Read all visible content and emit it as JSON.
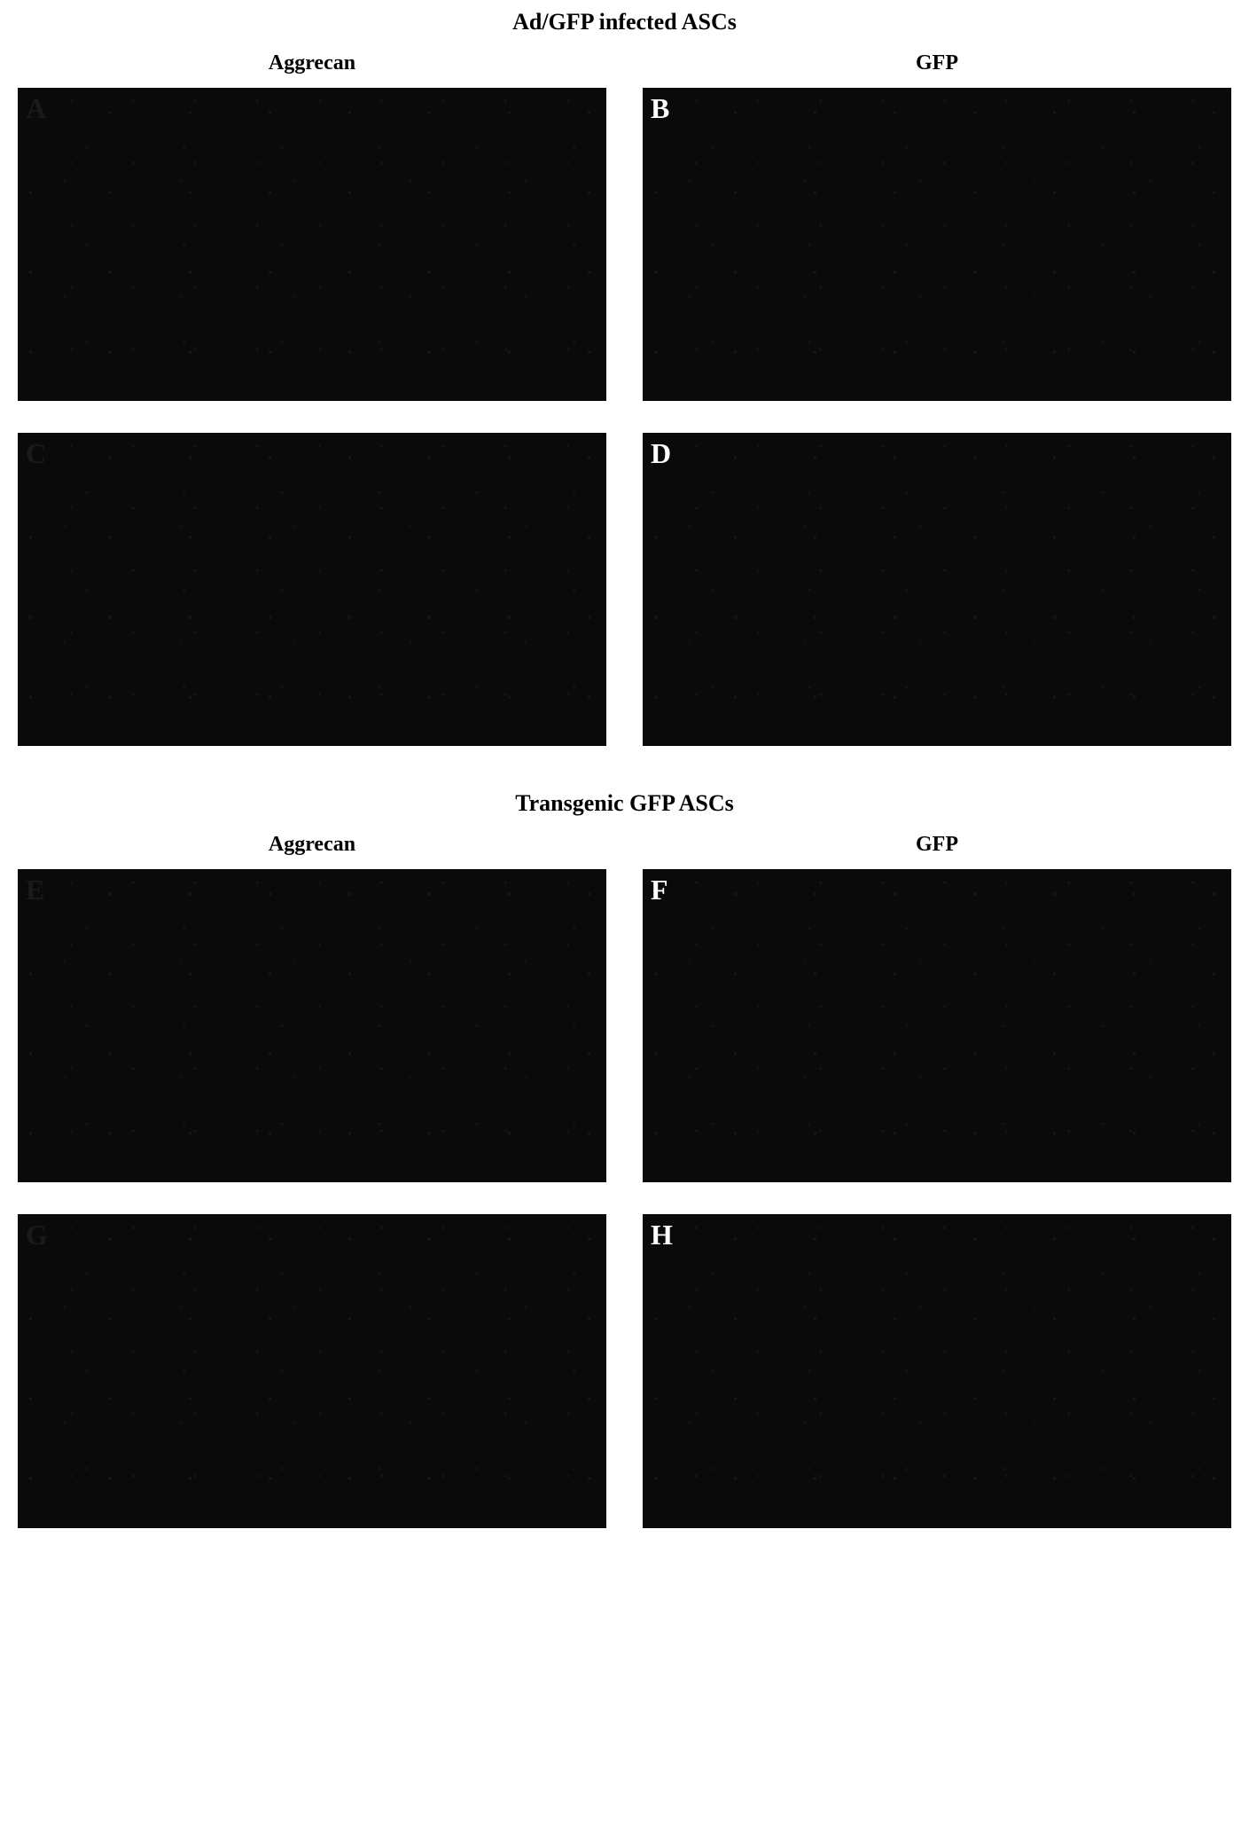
{
  "figure": {
    "background_color": "#ffffff",
    "panel_background": "#0a0a0a",
    "title_fontsize": 26,
    "header_fontsize": 24,
    "label_fontsize": 32,
    "label_color_light": "#ffffff",
    "label_color_dark": "#1a1a1a",
    "panel_aspect_ratio": 1.88,
    "row_gap": 36,
    "column_gap_percent": 3,
    "sections": [
      {
        "title": "Ad/GFP infected ASCs",
        "columns": [
          "Aggrecan",
          "GFP"
        ],
        "rows": [
          {
            "panels": [
              {
                "label": "A",
                "label_visible": false
              },
              {
                "label": "B",
                "label_visible": true
              }
            ]
          },
          {
            "panels": [
              {
                "label": "C",
                "label_visible": false
              },
              {
                "label": "D",
                "label_visible": true
              }
            ]
          }
        ]
      },
      {
        "title": "Transgenic GFP ASCs",
        "columns": [
          "Aggrecan",
          "GFP"
        ],
        "rows": [
          {
            "panels": [
              {
                "label": "E",
                "label_visible": false
              },
              {
                "label": "F",
                "label_visible": true
              }
            ]
          },
          {
            "panels": [
              {
                "label": "G",
                "label_visible": false
              },
              {
                "label": "H",
                "label_visible": true
              }
            ]
          }
        ]
      }
    ]
  }
}
